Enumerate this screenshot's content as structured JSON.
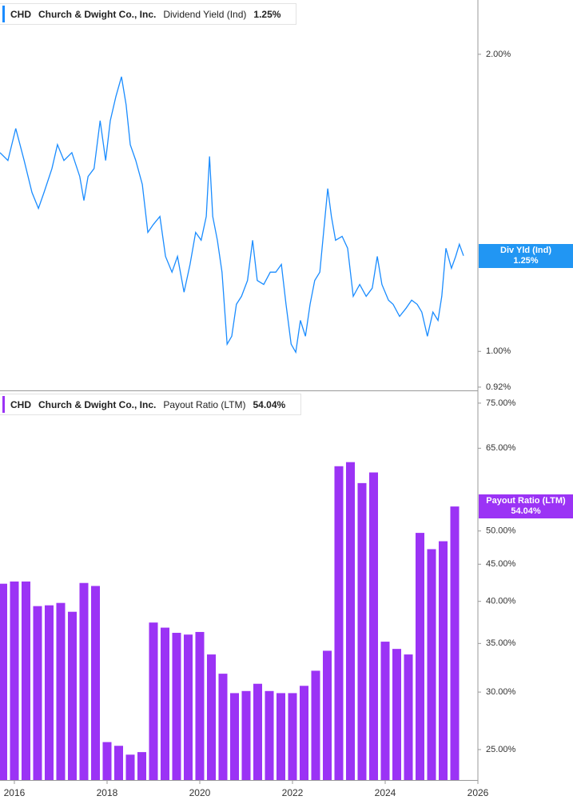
{
  "chart_data": [
    {
      "type": "line",
      "ticker": "CHD",
      "company": "Church & Dwight Co., Inc.",
      "metric": "Dividend Yield (Ind)",
      "last_value_label": "1.25%",
      "tag_label": "Div Yld (Ind)",
      "color": "#1a8cff",
      "log_scale": true,
      "x": [
        2015.69,
        2015.86,
        2016.03,
        2016.21,
        2016.38,
        2016.52,
        2016.64,
        2016.81,
        2016.93,
        2017.07,
        2017.24,
        2017.41,
        2017.5,
        2017.59,
        2017.72,
        2017.85,
        2017.97,
        2018.07,
        2018.19,
        2018.31,
        2018.41,
        2018.5,
        2018.62,
        2018.76,
        2018.88,
        2019.0,
        2019.14,
        2019.26,
        2019.4,
        2019.52,
        2019.66,
        2019.79,
        2019.91,
        2020.03,
        2020.14,
        2020.21,
        2020.28,
        2020.38,
        2020.48,
        2020.59,
        2020.69,
        2020.79,
        2020.9,
        2021.03,
        2021.14,
        2021.24,
        2021.38,
        2021.52,
        2021.64,
        2021.76,
        2021.86,
        2021.97,
        2022.07,
        2022.17,
        2022.28,
        2022.38,
        2022.48,
        2022.59,
        2022.67,
        2022.76,
        2022.84,
        2022.93,
        2023.07,
        2023.19,
        2023.31,
        2023.45,
        2023.59,
        2023.72,
        2023.83,
        2023.93,
        2024.07,
        2024.17,
        2024.31,
        2024.45,
        2024.57,
        2024.69,
        2024.79,
        2024.91,
        2025.03,
        2025.14,
        2025.22,
        2025.31,
        2025.43,
        2025.52,
        2025.6,
        2025.69
      ],
      "values": [
        1.59,
        1.561,
        1.682,
        1.561,
        1.449,
        1.396,
        1.449,
        1.532,
        1.62,
        1.561,
        1.59,
        1.504,
        1.422,
        1.504,
        1.532,
        1.713,
        1.561,
        1.713,
        1.812,
        1.898,
        1.778,
        1.62,
        1.561,
        1.476,
        1.32,
        1.345,
        1.37,
        1.248,
        1.203,
        1.248,
        1.148,
        1.225,
        1.32,
        1.296,
        1.37,
        1.576,
        1.37,
        1.296,
        1.203,
        1.017,
        1.036,
        1.116,
        1.137,
        1.18,
        1.296,
        1.18,
        1.169,
        1.203,
        1.203,
        1.225,
        1.116,
        1.017,
        0.998,
        1.075,
        1.036,
        1.116,
        1.18,
        1.203,
        1.32,
        1.462,
        1.37,
        1.296,
        1.308,
        1.272,
        1.137,
        1.169,
        1.137,
        1.159,
        1.248,
        1.169,
        1.127,
        1.116,
        1.085,
        1.106,
        1.127,
        1.116,
        1.096,
        1.036,
        1.096,
        1.075,
        1.137,
        1.272,
        1.214,
        1.248,
        1.284,
        1.25
      ],
      "xlim": [
        2015.69,
        2026.0
      ],
      "ylim": [
        0.913,
        2.27
      ],
      "yticks": [
        {
          "value": 2,
          "label": "2.00%"
        },
        {
          "value": 1,
          "label": "1.00%"
        },
        {
          "value": 0.92,
          "label": "0.92%"
        }
      ]
    },
    {
      "type": "bar",
      "ticker": "CHD",
      "company": "Church & Dwight Co., Inc.",
      "metric": "Payout Ratio (LTM)",
      "last_value_label": "54.04%",
      "tag_label": "Payout Ratio (LTM)",
      "color": "#9b33f5",
      "log_scale": true,
      "x": [
        2015.75,
        2016.0,
        2016.25,
        2016.5,
        2016.75,
        2017.0,
        2017.25,
        2017.5,
        2017.75,
        2018.0,
        2018.25,
        2018.5,
        2018.75,
        2019.0,
        2019.25,
        2019.5,
        2019.75,
        2020.0,
        2020.25,
        2020.5,
        2020.75,
        2021.0,
        2021.25,
        2021.5,
        2021.75,
        2022.0,
        2022.25,
        2022.5,
        2022.75,
        2023.0,
        2023.25,
        2023.5,
        2023.75,
        2024.0,
        2024.25,
        2024.5,
        2024.75,
        2025.0,
        2025.25,
        2025.5
      ],
      "values": [
        42.3,
        42.6,
        42.6,
        39.4,
        39.5,
        39.8,
        38.7,
        42.4,
        42.0,
        25.6,
        25.3,
        24.6,
        24.8,
        37.4,
        36.8,
        36.2,
        36.0,
        36.3,
        33.8,
        31.8,
        29.9,
        30.1,
        30.8,
        30.1,
        29.9,
        29.9,
        30.6,
        32.1,
        34.2,
        61.4,
        62.2,
        58.2,
        60.2,
        35.2,
        34.4,
        33.8,
        49.7,
        47.2,
        48.4,
        54.04
      ],
      "xlim": [
        2015.69,
        2026.0
      ],
      "xticks": [
        2016,
        2018,
        2020,
        2022,
        2024,
        2026
      ],
      "ylim": [
        22.7,
        77.3
      ],
      "yticks": [
        {
          "value": 75,
          "label": "75.00%"
        },
        {
          "value": 65,
          "label": "65.00%"
        },
        {
          "value": 50,
          "label": "50.00%"
        },
        {
          "value": 45,
          "label": "45.00%"
        },
        {
          "value": 40,
          "label": "40.00%"
        },
        {
          "value": 35,
          "label": "35.00%"
        },
        {
          "value": 30,
          "label": "30.00%"
        },
        {
          "value": 25,
          "label": "25.00%"
        }
      ]
    }
  ]
}
